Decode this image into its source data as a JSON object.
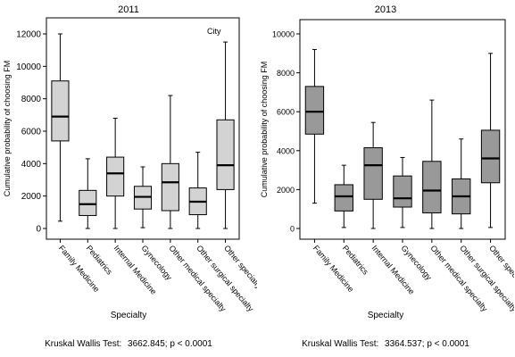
{
  "chart_data": [
    {
      "type": "box",
      "title": "2011",
      "xlabel": "Specialty",
      "ylabel": "Cumulative probability of choosing FM",
      "annotation": "City",
      "ylim": [
        0,
        12000
      ],
      "yticks": [
        0,
        2000,
        4000,
        6000,
        8000,
        10000,
        12000
      ],
      "box_color": "#d3d3d3",
      "categories": [
        "Family Medicine",
        "Pediatrics",
        "Internal Medicine",
        "Gynecology",
        "Other medical specialty",
        "Other surgical specialty",
        "Other specialty"
      ],
      "boxes": [
        {
          "min": 450,
          "q1": 5400,
          "median": 6900,
          "q3": 9100,
          "max": 12000
        },
        {
          "min": 0,
          "q1": 800,
          "median": 1500,
          "q3": 2350,
          "max": 4300
        },
        {
          "min": 0,
          "q1": 2000,
          "median": 3400,
          "q3": 4400,
          "max": 6800
        },
        {
          "min": 50,
          "q1": 1200,
          "median": 1950,
          "q3": 2600,
          "max": 3800
        },
        {
          "min": 0,
          "q1": 1100,
          "median": 2850,
          "q3": 4000,
          "max": 8200
        },
        {
          "min": 0,
          "q1": 850,
          "median": 1650,
          "q3": 2500,
          "max": 4700
        },
        {
          "min": 0,
          "q1": 2400,
          "median": 3900,
          "q3": 6700,
          "max": 11500
        }
      ],
      "test_label": "Kruskal Wallis Test:",
      "test_value": "3662.845; p < 0.0001"
    },
    {
      "type": "box",
      "title": "2013",
      "xlabel": "Specialty",
      "ylabel": "Cumulative probability of choosing FM",
      "ylim": [
        0,
        10000
      ],
      "yticks": [
        0,
        2000,
        4000,
        6000,
        8000,
        10000
      ],
      "box_color": "#999999",
      "categories": [
        "Family Medicine",
        "Pediatrics",
        "Internal Medicine",
        "Gynecology",
        "Other medical specialty",
        "Other surgical specialty",
        "Other specialty"
      ],
      "boxes": [
        {
          "min": 1300,
          "q1": 4850,
          "median": 6000,
          "q3": 7300,
          "max": 9200
        },
        {
          "min": 50,
          "q1": 900,
          "median": 1650,
          "q3": 2250,
          "max": 3250
        },
        {
          "min": 0,
          "q1": 1500,
          "median": 3250,
          "q3": 4150,
          "max": 5450
        },
        {
          "min": 50,
          "q1": 1100,
          "median": 1550,
          "q3": 2700,
          "max": 3650
        },
        {
          "min": 0,
          "q1": 800,
          "median": 1950,
          "q3": 3450,
          "max": 6600
        },
        {
          "min": 0,
          "q1": 750,
          "median": 1650,
          "q3": 2550,
          "max": 4600
        },
        {
          "min": 50,
          "q1": 2350,
          "median": 3600,
          "q3": 5050,
          "max": 9000
        }
      ],
      "test_label": "Kruskal Wallis Test:",
      "test_value": "3364.537; p < 0.0001"
    }
  ]
}
